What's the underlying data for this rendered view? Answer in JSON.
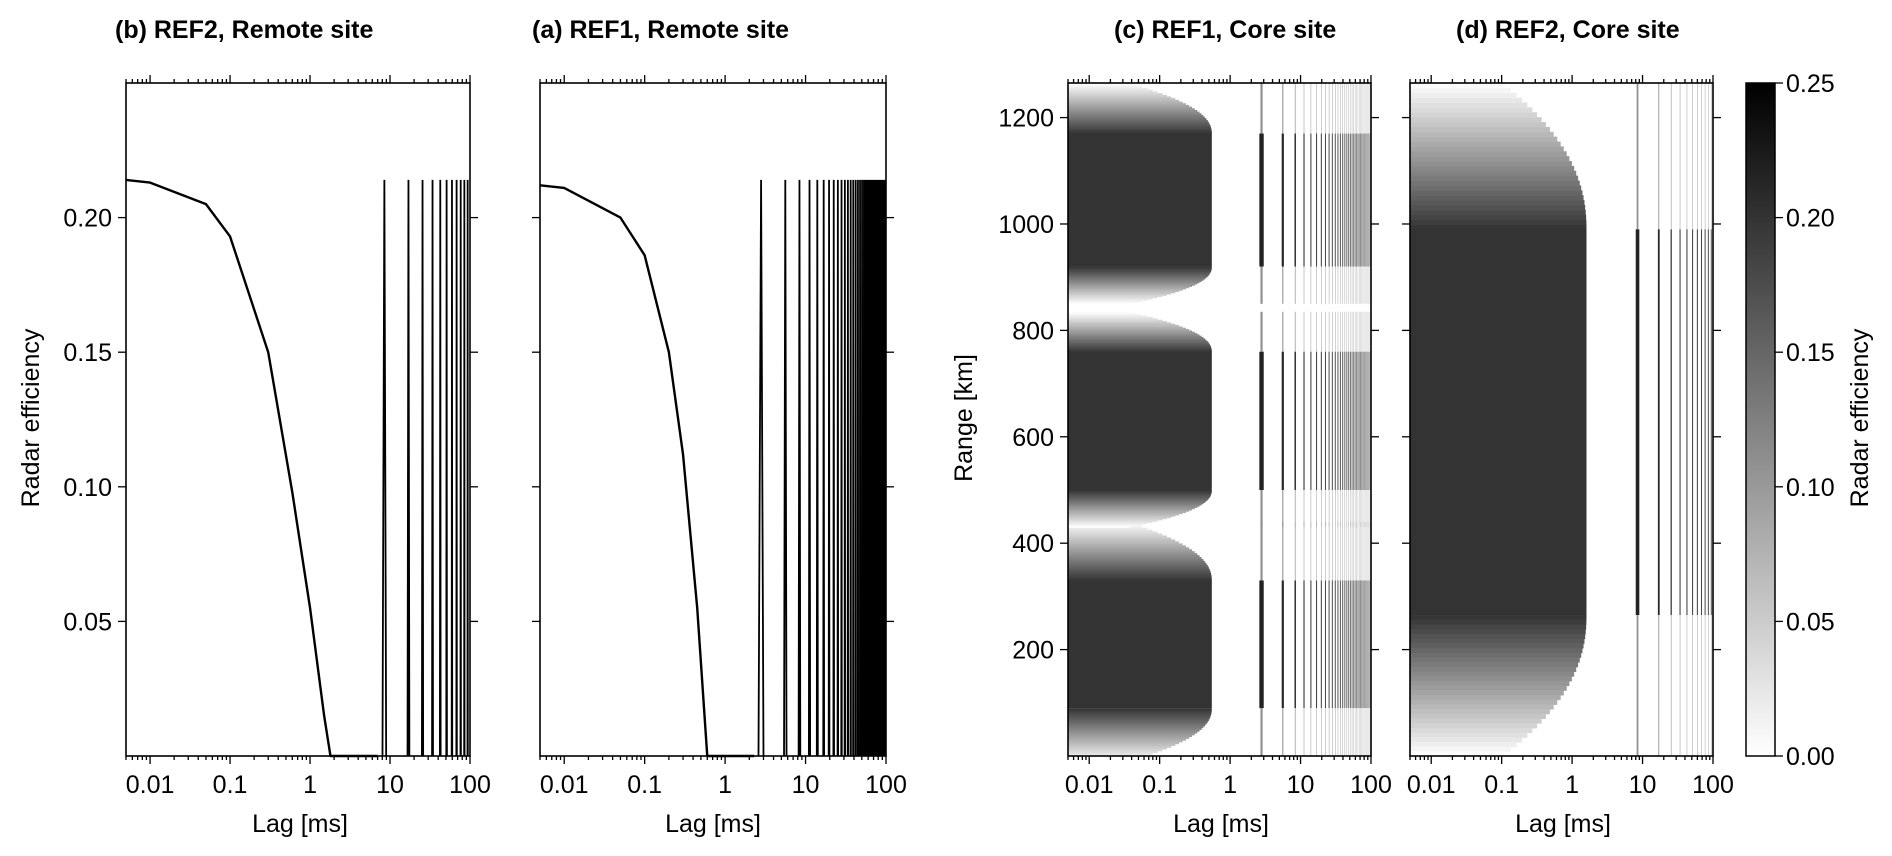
{
  "colors": {
    "ink": "#000000",
    "paper": "#ffffff"
  },
  "chart_data": [
    {
      "type": "line",
      "title": "(b) REF2, Remote site",
      "xlabel": "Lag [ms]",
      "ylabel": "Radar efficiency",
      "xscale": "log",
      "xlim": [
        0.005,
        100
      ],
      "ylim": [
        0.0,
        0.25
      ],
      "xticks": [
        "0.01",
        "0.1",
        "1",
        "10",
        "100"
      ],
      "yticks": [
        "0.05",
        "0.10",
        "0.15",
        "0.20"
      ],
      "decay": {
        "start_value": 0.214,
        "end_lag": 1.8
      },
      "series": [
        {
          "x": [
            0.005,
            0.01,
            0.05,
            0.1,
            0.3,
            0.6,
            1.0,
            1.5,
            1.8,
            7.0
          ],
          "y": [
            0.214,
            0.213,
            0.205,
            0.193,
            0.15,
            0.098,
            0.055,
            0.015,
            0.0,
            0.0
          ]
        }
      ],
      "spike_peak": 0.214,
      "spike_period_ms": 8.5,
      "spike_halfwidth_ms": 0.45,
      "grid": false
    },
    {
      "type": "line",
      "title": "(a) REF1, Remote site",
      "xlabel": "Lag [ms]",
      "ylabel": "",
      "xscale": "log",
      "xlim": [
        0.005,
        100
      ],
      "ylim": [
        0.0,
        0.25
      ],
      "xticks": [
        "0.01",
        "0.1",
        "1",
        "10",
        "100"
      ],
      "yticks": [],
      "decay": {
        "start_value": 0.212,
        "end_lag": 0.6
      },
      "series": [
        {
          "x": [
            0.005,
            0.01,
            0.05,
            0.1,
            0.2,
            0.3,
            0.45,
            0.6,
            2.3
          ],
          "y": [
            0.212,
            0.211,
            0.2,
            0.186,
            0.15,
            0.112,
            0.055,
            0.0,
            0.0
          ]
        }
      ],
      "spike_peak": 0.214,
      "spike_period_ms": 2.8,
      "spike_halfwidth_ms": 0.2,
      "grid": false
    },
    {
      "type": "heatmap",
      "title": "(c) REF1, Core site",
      "xlabel": "Lag [ms]",
      "ylabel": "Range [km]",
      "xscale": "log",
      "xlim": [
        0.005,
        100
      ],
      "ylim": [
        0,
        1265
      ],
      "xticks": [
        "0.01",
        "0.1",
        "1",
        "10",
        "100"
      ],
      "yticks": [
        "200",
        "400",
        "600",
        "800",
        "1000",
        "1200"
      ],
      "zlim": [
        0.0,
        0.25
      ],
      "block_value": 0.2,
      "blocks": [
        {
          "core": [
            90,
            330
          ],
          "edge_low": [
            -10,
            90
          ],
          "edge_high": [
            330,
            440
          ]
        },
        {
          "core": [
            500,
            760
          ],
          "edge_low": [
            430,
            500
          ],
          "edge_high": [
            760,
            835
          ]
        },
        {
          "core": [
            920,
            1170
          ],
          "edge_low": [
            850,
            920
          ],
          "edge_high": [
            1170,
            1265
          ]
        }
      ],
      "block_lag_end_ms": 0.55,
      "spike_period_ms": 2.8,
      "spike_halfwidth_ms": 0.2,
      "spike_value": 0.22
    },
    {
      "type": "heatmap",
      "title": "(d) REF2, Core site",
      "xlabel": "Lag [ms]",
      "ylabel": "",
      "xscale": "log",
      "xlim": [
        0.005,
        100
      ],
      "ylim": [
        0,
        1265
      ],
      "xticks": [
        "0.01",
        "0.1",
        "1",
        "10",
        "100"
      ],
      "yticks": [],
      "zlim": [
        0.0,
        0.25
      ],
      "block_value": 0.2,
      "blocks": [
        {
          "core": [
            265,
            990
          ],
          "edge_low": [
            0,
            265
          ],
          "edge_high": [
            990,
            1265
          ]
        }
      ],
      "block_lag_end_ms": 1.6,
      "spike_period_ms": 8.5,
      "spike_halfwidth_ms": 0.5,
      "spike_value": 0.22
    }
  ],
  "colorbar": {
    "label": "Radar efficiency",
    "range": [
      0.0,
      0.25
    ],
    "ticks": [
      "0.00",
      "0.05",
      "0.10",
      "0.15",
      "0.20",
      "0.25"
    ],
    "cmap": [
      "#ffffff",
      "#000000"
    ]
  }
}
